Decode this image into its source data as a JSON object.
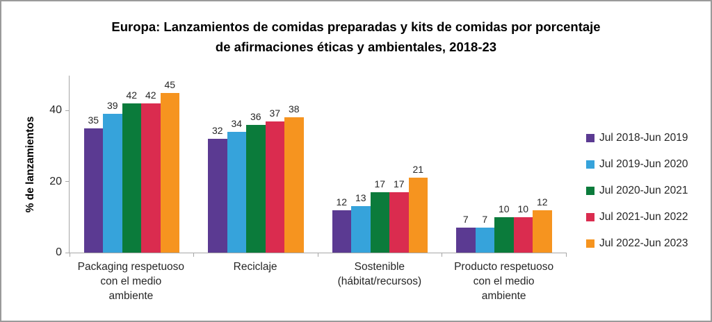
{
  "title": "Europa: Lanzamientos de comidas preparadas y kits de comidas por porcentaje\nde afirmaciones éticas y ambientales, 2018-23",
  "chart_data": {
    "type": "bar",
    "title": "Europa: Lanzamientos de comidas preparadas y kits de comidas por porcentaje de afirmaciones éticas y ambientales, 2018-23",
    "categories": [
      "Packaging respetuoso\ncon el medio\nambiente",
      "Reciclaje",
      "Sostenible\n(hábitat/recursos)",
      "Producto respetuoso\ncon el medio\nambiente"
    ],
    "series": [
      {
        "name": "Jul 2018-Jun 2019",
        "color": "#5B3A92",
        "values": [
          35,
          32,
          12,
          7
        ]
      },
      {
        "name": "Jul 2019-Jun 2020",
        "color": "#36A3DB",
        "values": [
          39,
          34,
          13,
          7
        ]
      },
      {
        "name": "Jul 2020-Jun 2021",
        "color": "#0B7B3B",
        "values": [
          42,
          36,
          17,
          10
        ]
      },
      {
        "name": "Jul 2021-Jun 2022",
        "color": "#DA2C4F",
        "values": [
          42,
          37,
          17,
          10
        ]
      },
      {
        "name": "Jul 2022-Jun 2023",
        "color": "#F6941F",
        "values": [
          45,
          38,
          21,
          12
        ]
      }
    ],
    "xlabel": "",
    "ylabel": "% de lanzamientos",
    "yticks": [
      0,
      20,
      40
    ],
    "ylim": [
      0,
      50
    ],
    "grid": false,
    "legend_position": "right",
    "value_labels": true,
    "axis_color": "#A6A6A6"
  }
}
